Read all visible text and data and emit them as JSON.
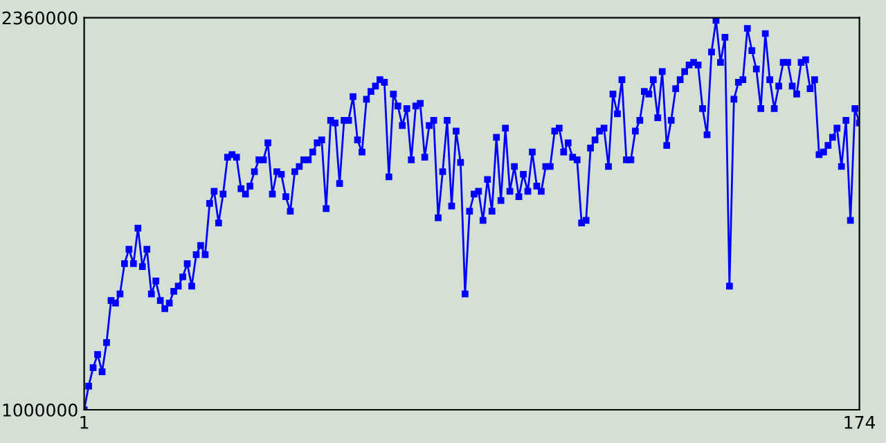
{
  "chart_data": {
    "type": "line",
    "x": [
      1,
      2,
      3,
      4,
      5,
      6,
      7,
      8,
      9,
      10,
      11,
      12,
      13,
      14,
      15,
      16,
      17,
      18,
      19,
      20,
      21,
      22,
      23,
      24,
      25,
      26,
      27,
      28,
      29,
      30,
      31,
      32,
      33,
      34,
      35,
      36,
      37,
      38,
      39,
      40,
      41,
      42,
      43,
      44,
      45,
      46,
      47,
      48,
      49,
      50,
      51,
      52,
      53,
      54,
      55,
      56,
      57,
      58,
      59,
      60,
      61,
      62,
      63,
      64,
      65,
      66,
      67,
      68,
      69,
      70,
      71,
      72,
      73,
      74,
      75,
      76,
      77,
      78,
      79,
      80,
      81,
      82,
      83,
      84,
      85,
      86,
      87,
      88,
      89,
      90,
      91,
      92,
      93,
      94,
      95,
      96,
      97,
      98,
      99,
      100,
      101,
      102,
      103,
      104,
      105,
      106,
      107,
      108,
      109,
      110,
      111,
      112,
      113,
      114,
      115,
      116,
      117,
      118,
      119,
      120,
      121,
      122,
      123,
      124,
      125,
      126,
      127,
      128,
      129,
      130,
      131,
      132,
      133,
      134,
      135,
      136,
      137,
      138,
      139,
      140,
      141,
      142,
      143,
      144,
      145,
      146,
      147,
      148,
      149,
      150,
      151,
      152,
      153,
      154,
      155,
      156,
      157,
      158,
      159,
      160,
      161,
      162,
      163,
      164,
      165,
      166,
      167,
      168,
      169,
      170,
      171,
      172,
      173,
      174
    ],
    "series": [
      {
        "color": "#0000ff",
        "values": [
          1000000,
          1082000,
          1146000,
          1192000,
          1132000,
          1233000,
          1379000,
          1370000,
          1402000,
          1507000,
          1557000,
          1507000,
          1630000,
          1497000,
          1557000,
          1402000,
          1447000,
          1379000,
          1351000,
          1370000,
          1411000,
          1429000,
          1461000,
          1507000,
          1429000,
          1538000,
          1570000,
          1538000,
          1716000,
          1758000,
          1648000,
          1748000,
          1876000,
          1885000,
          1876000,
          1767000,
          1748000,
          1776000,
          1826000,
          1867000,
          1867000,
          1926000,
          1748000,
          1826000,
          1817000,
          1739000,
          1689000,
          1826000,
          1844000,
          1867000,
          1867000,
          1894000,
          1926000,
          1936000,
          1698000,
          2004000,
          1995000,
          1785000,
          2004000,
          2004000,
          2086000,
          1936000,
          1894000,
          2077000,
          2104000,
          2123000,
          2145000,
          2136000,
          1808000,
          2095000,
          2054000,
          1986000,
          2045000,
          1867000,
          2054000,
          2063000,
          1876000,
          1986000,
          2004000,
          1666000,
          1826000,
          2004000,
          1707000,
          1967000,
          1858000,
          1402000,
          1689000,
          1748000,
          1758000,
          1657000,
          1799000,
          1689000,
          1945000,
          1726000,
          1977000,
          1758000,
          1844000,
          1739000,
          1817000,
          1758000,
          1894000,
          1776000,
          1758000,
          1844000,
          1844000,
          1967000,
          1977000,
          1894000,
          1926000,
          1876000,
          1867000,
          1648000,
          1657000,
          1908000,
          1936000,
          1967000,
          1977000,
          1844000,
          2095000,
          2027000,
          2145000,
          1867000,
          1867000,
          1967000,
          2004000,
          2104000,
          2095000,
          2145000,
          2013000,
          2173000,
          1917000,
          2004000,
          2114000,
          2145000,
          2173000,
          2196000,
          2205000,
          2196000,
          2045000,
          1954000,
          2241000,
          2351000,
          2205000,
          2292000,
          1429000,
          2077000,
          2136000,
          2145000,
          2323000,
          2246000,
          2182000,
          2045000,
          2305000,
          2145000,
          2045000,
          2123000,
          2205000,
          2205000,
          2123000,
          2095000,
          2205000,
          2214000,
          2114000,
          2145000,
          1885000,
          1894000,
          1917000,
          1945000,
          1977000,
          1844000,
          2004000,
          1657000,
          2045000,
          1995000
        ]
      }
    ],
    "xlim": [
      1,
      174
    ],
    "xticks": [
      1,
      174
    ],
    "ylim": [
      1000000,
      2360000
    ],
    "yticks": [
      1000000,
      2360000
    ],
    "marker": "square",
    "line_style": "solid",
    "grid": false,
    "legend": false
  }
}
